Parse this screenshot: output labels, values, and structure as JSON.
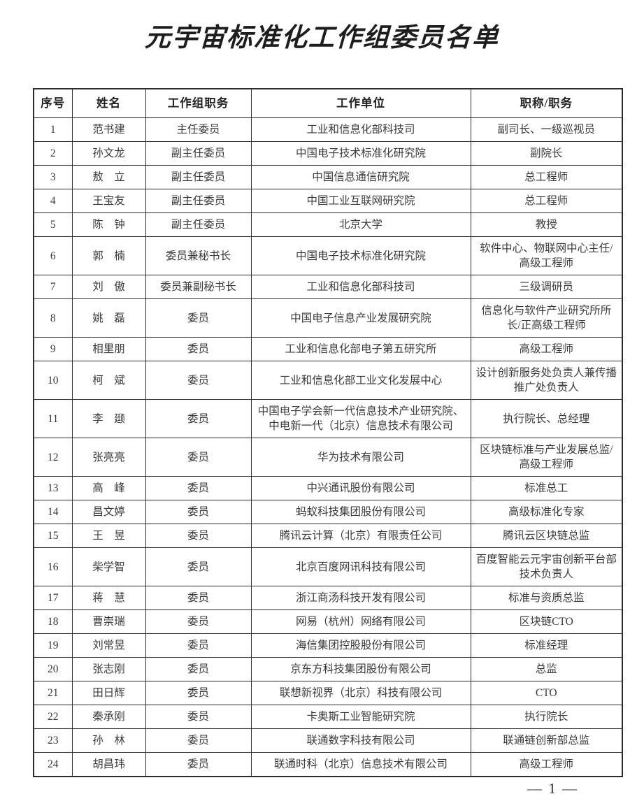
{
  "page": {
    "title": "元宇宙标准化工作组委员名单",
    "page_number": "— 1 —"
  },
  "colors": {
    "background": "#ffffff",
    "text": "#3a3a3a",
    "border": "#2e2e2e"
  },
  "table": {
    "headers": [
      "序号",
      "姓名",
      "工作组职务",
      "工作单位",
      "职称/职务"
    ],
    "rows": [
      {
        "no": "1",
        "name": "范书建",
        "role": "主任委员",
        "unit": "工业和信息化部科技司",
        "title": "副司长、一级巡视员"
      },
      {
        "no": "2",
        "name": "孙文龙",
        "role": "副主任委员",
        "unit": "中国电子技术标准化研究院",
        "title": "副院长"
      },
      {
        "no": "3",
        "name": "敖　立",
        "role": "副主任委员",
        "unit": "中国信息通信研究院",
        "title": "总工程师"
      },
      {
        "no": "4",
        "name": "王宝友",
        "role": "副主任委员",
        "unit": "中国工业互联网研究院",
        "title": "总工程师"
      },
      {
        "no": "5",
        "name": "陈　钟",
        "role": "副主任委员",
        "unit": "北京大学",
        "title": "教授"
      },
      {
        "no": "6",
        "name": "郭　楠",
        "role": "委员兼秘书长",
        "unit": "中国电子技术标准化研究院",
        "title": "软件中心、物联网中心主任/高级工程师"
      },
      {
        "no": "7",
        "name": "刘　傲",
        "role": "委员兼副秘书长",
        "unit": "工业和信息化部科技司",
        "title": "三级调研员"
      },
      {
        "no": "8",
        "name": "姚　磊",
        "role": "委员",
        "unit": "中国电子信息产业发展研究院",
        "title": "信息化与软件产业研究所所长/正高级工程师"
      },
      {
        "no": "9",
        "name": "相里朋",
        "role": "委员",
        "unit": "工业和信息化部电子第五研究所",
        "title": "高级工程师"
      },
      {
        "no": "10",
        "name": "柯　斌",
        "role": "委员",
        "unit": "工业和信息化部工业文化发展中心",
        "title": "设计创新服务处负责人兼传播推广处负责人"
      },
      {
        "no": "11",
        "name": "李　颋",
        "role": "委员",
        "unit": "中国电子学会新一代信息技术产业研究院、中电新一代（北京）信息技术有限公司",
        "title": "执行院长、总经理"
      },
      {
        "no": "12",
        "name": "张亮亮",
        "role": "委员",
        "unit": "华为技术有限公司",
        "title": "区块链标准与产业发展总监/高级工程师"
      },
      {
        "no": "13",
        "name": "高　峰",
        "role": "委员",
        "unit": "中兴通讯股份有限公司",
        "title": "标准总工"
      },
      {
        "no": "14",
        "name": "昌文婷",
        "role": "委员",
        "unit": "蚂蚁科技集团股份有限公司",
        "title": "高级标准化专家"
      },
      {
        "no": "15",
        "name": "王　昱",
        "role": "委员",
        "unit": "腾讯云计算（北京）有限责任公司",
        "title": "腾讯云区块链总监"
      },
      {
        "no": "16",
        "name": "柴学智",
        "role": "委员",
        "unit": "北京百度网讯科技有限公司",
        "title": "百度智能云元宇宙创新平台部技术负责人"
      },
      {
        "no": "17",
        "name": "蒋　慧",
        "role": "委员",
        "unit": "浙江商汤科技开发有限公司",
        "title": "标准与资质总监"
      },
      {
        "no": "18",
        "name": "曹崇瑞",
        "role": "委员",
        "unit": "网易（杭州）网络有限公司",
        "title": "区块链CTO"
      },
      {
        "no": "19",
        "name": "刘常昱",
        "role": "委员",
        "unit": "海信集团控股股份有限公司",
        "title": "标准经理"
      },
      {
        "no": "20",
        "name": "张志刚",
        "role": "委员",
        "unit": "京东方科技集团股份有限公司",
        "title": "总监"
      },
      {
        "no": "21",
        "name": "田日辉",
        "role": "委员",
        "unit": "联想新视界（北京）科技有限公司",
        "title": "CTO"
      },
      {
        "no": "22",
        "name": "秦承刚",
        "role": "委员",
        "unit": "卡奥斯工业智能研究院",
        "title": "执行院长"
      },
      {
        "no": "23",
        "name": "孙　林",
        "role": "委员",
        "unit": "联通数字科技有限公司",
        "title": "联通链创新部总监"
      },
      {
        "no": "24",
        "name": "胡昌玮",
        "role": "委员",
        "unit": "联通时科（北京）信息技术有限公司",
        "title": "高级工程师"
      }
    ]
  }
}
